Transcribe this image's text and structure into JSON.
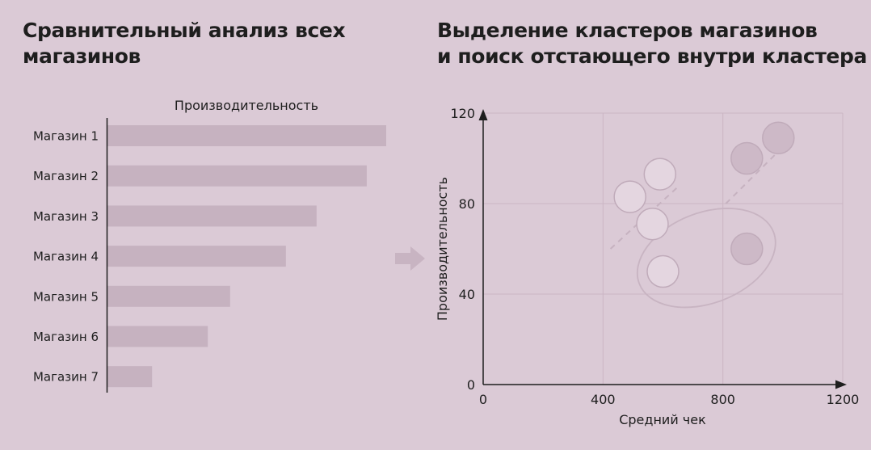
{
  "left_title": [
    "Сравнительный анализ всех",
    "магазинов"
  ],
  "right_title": [
    "Выделение кластеров магазинов",
    "и поиск отстающего внутри кластера"
  ],
  "colors": {
    "background": "#dbcad6",
    "bar": "#c6b2c0",
    "axis": "#1e1e1e",
    "grid": "#cbb6c4",
    "arrow": "#c8b4c2",
    "light_point": "#e4d6e0",
    "dark_point": "#cdb9c7",
    "point_stroke": "#c0abba",
    "dashed_line": "#c6b2c0",
    "cluster_outline": "#c8b4c2"
  },
  "icons": {
    "transition": "right-arrow-icon"
  },
  "chart_data": [
    {
      "type": "bar",
      "orientation": "horizontal",
      "title": "",
      "xlabel": "Производительность",
      "categories": [
        "Магазин 1",
        "Магазин 2",
        "Магазин 3",
        "Магазин 4",
        "Магазин 5",
        "Магазин 6",
        "Магазин 7"
      ],
      "values": [
        100,
        93,
        75,
        64,
        44,
        36,
        16
      ],
      "xlim": [
        0,
        100
      ],
      "grid": false
    },
    {
      "type": "scatter",
      "title": "",
      "xlabel": "Средний чек",
      "ylabel": "Производительность",
      "xlim": [
        0,
        1200
      ],
      "ylim": [
        0,
        120
      ],
      "xticks": [
        0,
        400,
        800,
        1200
      ],
      "yticks": [
        0,
        40,
        80,
        120
      ],
      "grid": true,
      "points": [
        {
          "x": 490,
          "y": 83,
          "shade": "light"
        },
        {
          "x": 590,
          "y": 93,
          "shade": "light"
        },
        {
          "x": 565,
          "y": 71,
          "shade": "light"
        },
        {
          "x": 600,
          "y": 50,
          "shade": "light"
        },
        {
          "x": 880,
          "y": 100,
          "shade": "dark"
        },
        {
          "x": 985,
          "y": 109,
          "shade": "dark"
        },
        {
          "x": 880,
          "y": 60,
          "shade": "dark"
        }
      ],
      "trend_lines": [
        {
          "x": [
            425,
            655
          ],
          "y": [
            60,
            88
          ]
        },
        {
          "x": [
            810,
            1000
          ],
          "y": [
            80,
            105
          ]
        }
      ],
      "cluster_ellipse": {
        "cx": 745,
        "cy": 56,
        "rx": 240,
        "ry": 20,
        "rotate_deg": -21
      }
    }
  ]
}
